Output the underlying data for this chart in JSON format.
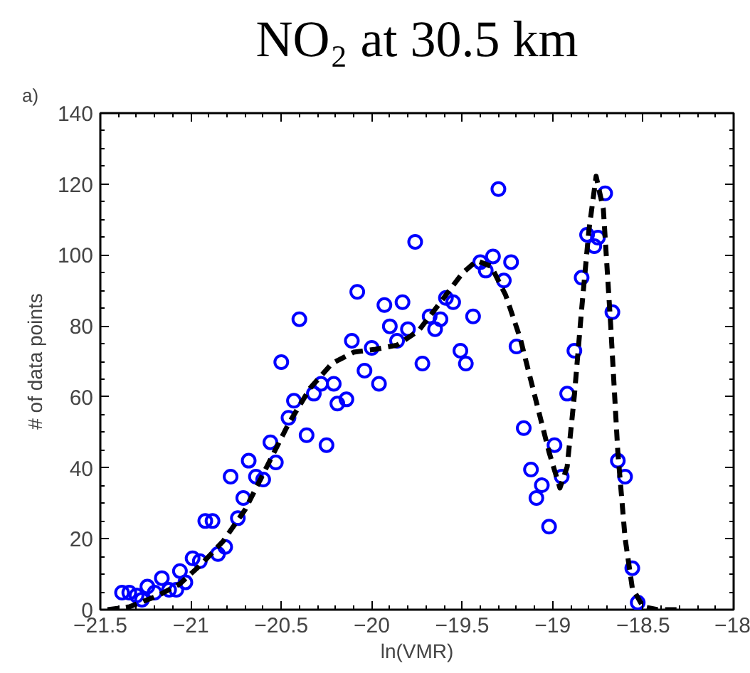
{
  "chart_data": {
    "type": "scatter",
    "title": "NO₂ at 30.5 km",
    "xlabel": "ln(VMR)",
    "ylabel": "# of data points",
    "annotations": [
      "a)"
    ],
    "xlim": [
      -21.5,
      -18
    ],
    "ylim": [
      0,
      140
    ],
    "xticks": [
      -21.5,
      -21,
      -20.5,
      -20,
      -19.5,
      -19,
      -18.5,
      -18
    ],
    "yticks": [
      0,
      20,
      40,
      60,
      80,
      100,
      120,
      140
    ],
    "grid": false,
    "series": [
      {
        "marker": "circle",
        "color": "#0000ff",
        "x": [
          -21.38,
          -21.34,
          -21.3,
          -21.27,
          -21.24,
          -21.2,
          -21.16,
          -21.12,
          -21.08,
          -21.06,
          -21.03,
          -20.99,
          -20.95,
          -20.92,
          -20.88,
          -20.85,
          -20.81,
          -20.78,
          -20.74,
          -20.71,
          -20.68,
          -20.64,
          -20.6,
          -20.56,
          -20.53,
          -20.5,
          -20.46,
          -20.43,
          -20.4,
          -20.36,
          -20.32,
          -20.28,
          -20.25,
          -20.21,
          -20.19,
          -20.14,
          -20.11,
          -20.08,
          -20.04,
          -20.0,
          -19.96,
          -19.93,
          -19.9,
          -19.86,
          -19.83,
          -19.8,
          -19.76,
          -19.72,
          -19.68,
          -19.65,
          -19.62,
          -19.59,
          -19.55,
          -19.51,
          -19.48,
          -19.44,
          -19.4,
          -19.37,
          -19.33,
          -19.3,
          -19.27,
          -19.23,
          -19.2,
          -19.16,
          -19.12,
          -19.09,
          -19.06,
          -19.02,
          -18.99,
          -18.95,
          -18.92,
          -18.88,
          -18.84,
          -18.81,
          -18.77,
          -18.75,
          -18.71,
          -18.67,
          -18.64,
          -18.6,
          -18.56,
          -18.53
        ],
        "values": [
          4.8,
          4.8,
          4.0,
          2.8,
          6.5,
          4.8,
          8.9,
          5.6,
          5.6,
          10.9,
          7.7,
          14.5,
          13.7,
          25.0,
          25.0,
          15.7,
          17.7,
          37.5,
          25.8,
          31.5,
          42.0,
          37.5,
          36.7,
          47.2,
          41.5,
          69.8,
          54.1,
          58.9,
          81.9,
          49.2,
          60.9,
          63.7,
          46.4,
          63.7,
          58.1,
          59.3,
          75.8,
          89.6,
          67.4,
          73.8,
          63.7,
          85.9,
          79.9,
          75.8,
          86.7,
          79.1,
          103.7,
          69.4,
          82.7,
          79.1,
          81.9,
          87.9,
          86.7,
          73.0,
          69.4,
          82.7,
          98.0,
          95.6,
          99.6,
          118.6,
          92.8,
          98.0,
          74.2,
          51.2,
          39.5,
          31.5,
          35.1,
          23.4,
          46.4,
          37.5,
          60.9,
          73.0,
          93.6,
          105.7,
          102.5,
          104.9,
          117.4,
          83.9,
          42.0,
          37.5,
          11.7,
          2.0
        ]
      },
      {
        "type": "line",
        "marker": "none",
        "line_style": "dashed",
        "color": "#000000",
        "x": [
          -21.46,
          -21.34,
          -21.18,
          -21.06,
          -20.94,
          -20.82,
          -20.7,
          -20.58,
          -20.46,
          -20.34,
          -20.22,
          -20.1,
          -19.98,
          -19.86,
          -19.74,
          -19.62,
          -19.5,
          -19.42,
          -19.34,
          -19.26,
          -19.18,
          -19.1,
          -19.02,
          -18.96,
          -18.92,
          -18.88,
          -18.84,
          -18.8,
          -18.76,
          -18.72,
          -18.68,
          -18.64,
          -18.6,
          -18.56,
          -18.5,
          -18.42,
          -18.3
        ],
        "values": [
          0,
          0.8,
          4.0,
          7.3,
          12.9,
          19.4,
          28.2,
          40.3,
          52.4,
          62.5,
          69.4,
          72.6,
          73.4,
          74.6,
          78.7,
          86.7,
          94.8,
          98.4,
          96.8,
          88.7,
          76.6,
          60.5,
          44.4,
          34.3,
          40.3,
          60.5,
          84.7,
          106.9,
          122.2,
          112.9,
          80.7,
          44.4,
          20.2,
          6.1,
          0.8,
          0,
          0
        ]
      }
    ]
  }
}
